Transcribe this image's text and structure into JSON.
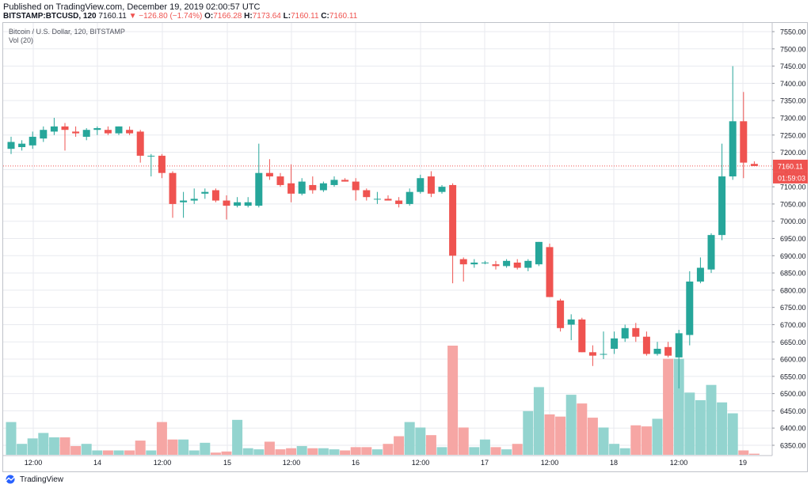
{
  "header": {
    "published": "Published on TradingView.com, December 19, 2019 02:00:57 UTC",
    "symbol": "BITSTAMP:BTCUSD, 120",
    "last": "7160.11",
    "change": "▼ −126.80 (−1.74%)",
    "o_label": "O:",
    "o_val": "7166.28",
    "h_label": "H:",
    "h_val": "7173.64",
    "l_label": "L:",
    "l_val": "7160.11",
    "c_label": "C:",
    "c_val": "7160.11"
  },
  "legend": {
    "title": "Bitcoin / U.S. Dollar, 120, BITSTAMP",
    "volume": "Vol (20)"
  },
  "footer": {
    "brand": "TradingView"
  },
  "colors": {
    "up": "#26a69a",
    "down": "#ef5350",
    "vol_up": "#93d4cf",
    "vol_down": "#f6a6a4",
    "grid": "#e8eaef",
    "price_line": "#ef5350"
  },
  "chart_data": {
    "type": "candlestick",
    "price_axis": {
      "min": 6350,
      "max": 7550,
      "ticks": [
        "7550.00",
        "7500.00",
        "7450.00",
        "7400.00",
        "7350.00",
        "7300.00",
        "7250.00",
        "7200.00",
        "7150.00",
        "7100.00",
        "7050.00",
        "7000.00",
        "6950.00",
        "6900.00",
        "6850.00",
        "6800.00",
        "6750.00",
        "6700.00",
        "6650.00",
        "6600.00",
        "6550.00",
        "6500.00",
        "6450.00",
        "6400.00",
        "6350.00"
      ]
    },
    "time_labels": [
      "12:00",
      "14",
      "12:00",
      "15",
      "12:00",
      "16",
      "12:00",
      "17",
      "12:00",
      "18",
      "12:00",
      "19"
    ],
    "last_price_label": "7160.11",
    "countdown_label": "01:59:03",
    "last_price": 7160.11,
    "candles": [
      {
        "o": 7210,
        "h": 7245,
        "l": 7195,
        "c": 7230
      },
      {
        "o": 7215,
        "h": 7235,
        "l": 7205,
        "c": 7225
      },
      {
        "o": 7220,
        "h": 7260,
        "l": 7210,
        "c": 7245
      },
      {
        "o": 7240,
        "h": 7275,
        "l": 7230,
        "c": 7265
      },
      {
        "o": 7260,
        "h": 7300,
        "l": 7250,
        "c": 7275
      },
      {
        "o": 7275,
        "h": 7285,
        "l": 7205,
        "c": 7265
      },
      {
        "o": 7260,
        "h": 7275,
        "l": 7245,
        "c": 7255
      },
      {
        "o": 7245,
        "h": 7270,
        "l": 7235,
        "c": 7265
      },
      {
        "o": 7265,
        "h": 7275,
        "l": 7250,
        "c": 7270
      },
      {
        "o": 7265,
        "h": 7275,
        "l": 7250,
        "c": 7255
      },
      {
        "o": 7255,
        "h": 7275,
        "l": 7250,
        "c": 7275
      },
      {
        "o": 7265,
        "h": 7275,
        "l": 7250,
        "c": 7255
      },
      {
        "o": 7260,
        "h": 7265,
        "l": 7170,
        "c": 7190
      },
      {
        "o": 7190,
        "h": 7195,
        "l": 7130,
        "c": 7190
      },
      {
        "o": 7190,
        "h": 7195,
        "l": 7125,
        "c": 7140
      },
      {
        "o": 7140,
        "h": 7145,
        "l": 7010,
        "c": 7050
      },
      {
        "o": 7055,
        "h": 7085,
        "l": 7010,
        "c": 7060
      },
      {
        "o": 7060,
        "h": 7095,
        "l": 7050,
        "c": 7065
      },
      {
        "o": 7080,
        "h": 7095,
        "l": 7065,
        "c": 7085
      },
      {
        "o": 7090,
        "h": 7095,
        "l": 7055,
        "c": 7060
      },
      {
        "o": 7060,
        "h": 7075,
        "l": 7005,
        "c": 7045
      },
      {
        "o": 7045,
        "h": 7070,
        "l": 7040,
        "c": 7055
      },
      {
        "o": 7045,
        "h": 7070,
        "l": 7040,
        "c": 7055
      },
      {
        "o": 7045,
        "h": 7225,
        "l": 7040,
        "c": 7140
      },
      {
        "o": 7140,
        "h": 7180,
        "l": 7120,
        "c": 7130
      },
      {
        "o": 7130,
        "h": 7140,
        "l": 7100,
        "c": 7105
      },
      {
        "o": 7110,
        "h": 7165,
        "l": 7055,
        "c": 7080
      },
      {
        "o": 7080,
        "h": 7125,
        "l": 7075,
        "c": 7115
      },
      {
        "o": 7105,
        "h": 7130,
        "l": 7080,
        "c": 7090
      },
      {
        "o": 7090,
        "h": 7115,
        "l": 7085,
        "c": 7110
      },
      {
        "o": 7105,
        "h": 7130,
        "l": 7100,
        "c": 7120
      },
      {
        "o": 7120,
        "h": 7125,
        "l": 7115,
        "c": 7115
      },
      {
        "o": 7115,
        "h": 7125,
        "l": 7060,
        "c": 7090
      },
      {
        "o": 7090,
        "h": 7095,
        "l": 7060,
        "c": 7070
      },
      {
        "o": 7065,
        "h": 7085,
        "l": 7050,
        "c": 7065
      },
      {
        "o": 7065,
        "h": 7075,
        "l": 7060,
        "c": 7060
      },
      {
        "o": 7060,
        "h": 7070,
        "l": 7040,
        "c": 7050
      },
      {
        "o": 7050,
        "h": 7095,
        "l": 7045,
        "c": 7085
      },
      {
        "o": 7085,
        "h": 7135,
        "l": 7080,
        "c": 7125
      },
      {
        "o": 7130,
        "h": 7145,
        "l": 7070,
        "c": 7080
      },
      {
        "o": 7085,
        "h": 7105,
        "l": 7080,
        "c": 7100
      },
      {
        "o": 7105,
        "h": 7110,
        "l": 6820,
        "c": 6900
      },
      {
        "o": 6890,
        "h": 6895,
        "l": 6825,
        "c": 6875
      },
      {
        "o": 6875,
        "h": 6890,
        "l": 6865,
        "c": 6880
      },
      {
        "o": 6880,
        "h": 6885,
        "l": 6875,
        "c": 6880
      },
      {
        "o": 6875,
        "h": 6885,
        "l": 6860,
        "c": 6870
      },
      {
        "o": 6870,
        "h": 6890,
        "l": 6865,
        "c": 6885
      },
      {
        "o": 6880,
        "h": 6890,
        "l": 6860,
        "c": 6865
      },
      {
        "o": 6865,
        "h": 6890,
        "l": 6855,
        "c": 6885
      },
      {
        "o": 6875,
        "h": 6940,
        "l": 6870,
        "c": 6940
      },
      {
        "o": 6925,
        "h": 6935,
        "l": 6780,
        "c": 6780
      },
      {
        "o": 6770,
        "h": 6775,
        "l": 6680,
        "c": 6690
      },
      {
        "o": 6700,
        "h": 6730,
        "l": 6655,
        "c": 6715
      },
      {
        "o": 6715,
        "h": 6720,
        "l": 6620,
        "c": 6620
      },
      {
        "o": 6620,
        "h": 6640,
        "l": 6580,
        "c": 6610
      },
      {
        "o": 6615,
        "h": 6680,
        "l": 6600,
        "c": 6615
      },
      {
        "o": 6630,
        "h": 6680,
        "l": 6615,
        "c": 6660
      },
      {
        "o": 6660,
        "h": 6700,
        "l": 6650,
        "c": 6690
      },
      {
        "o": 6690,
        "h": 6705,
        "l": 6650,
        "c": 6665
      },
      {
        "o": 6665,
        "h": 6680,
        "l": 6610,
        "c": 6615
      },
      {
        "o": 6615,
        "h": 6650,
        "l": 6610,
        "c": 6630
      },
      {
        "o": 6635,
        "h": 6650,
        "l": 6605,
        "c": 6610
      },
      {
        "o": 6605,
        "h": 6685,
        "l": 6515,
        "c": 6675
      },
      {
        "o": 6670,
        "h": 6855,
        "l": 6640,
        "c": 6825
      },
      {
        "o": 6825,
        "h": 6895,
        "l": 6820,
        "c": 6865
      },
      {
        "o": 6860,
        "h": 6965,
        "l": 6850,
        "c": 6960
      },
      {
        "o": 6960,
        "h": 7225,
        "l": 6945,
        "c": 7130
      },
      {
        "o": 7130,
        "h": 7450,
        "l": 7120,
        "c": 7290
      },
      {
        "o": 7290,
        "h": 7375,
        "l": 7125,
        "c": 7170
      },
      {
        "o": 7166.28,
        "h": 7173.64,
        "l": 7160.11,
        "c": 7160.11
      }
    ],
    "volume": [
      0.3,
      0.1,
      0.15,
      0.2,
      0.16,
      0.16,
      0.08,
      0.1,
      0.04,
      0.04,
      0.04,
      0.04,
      0.13,
      0.04,
      0.3,
      0.14,
      0.14,
      0.04,
      0.11,
      0.02,
      0.03,
      0.32,
      0.06,
      0.05,
      0.12,
      0.05,
      0.06,
      0.08,
      0.06,
      0.06,
      0.05,
      0.04,
      0.07,
      0.07,
      0.05,
      0.1,
      0.17,
      0.3,
      0.25,
      0.18,
      0.07,
      1.0,
      0.25,
      0.07,
      0.14,
      0.07,
      0.05,
      0.1,
      0.4,
      0.62,
      0.37,
      0.35,
      0.55,
      0.47,
      0.34,
      0.25,
      0.1,
      0.06,
      0.27,
      0.26,
      0.33,
      0.88,
      0.88,
      0.57,
      0.5,
      0.64,
      0.48,
      0.38,
      0.04,
      0.01
    ]
  }
}
